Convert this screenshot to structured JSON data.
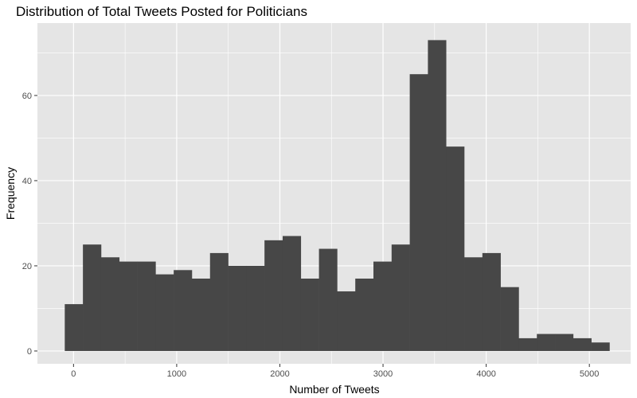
{
  "chart_data": {
    "type": "bar",
    "title": "Distribution of Total Tweets Posted for Politicians",
    "xlabel": "Number of Tweets",
    "ylabel": "Frequency",
    "bin_width": 176,
    "bin_start": -85,
    "values": [
      11,
      25,
      22,
      21,
      21,
      18,
      19,
      17,
      23,
      20,
      20,
      26,
      27,
      17,
      24,
      14,
      17,
      21,
      25,
      65,
      73,
      48,
      22,
      23,
      15,
      3,
      4,
      4,
      3,
      2
    ],
    "xlim": [
      -350,
      5400
    ],
    "ylim": [
      -3,
      77
    ],
    "xticks": [
      0,
      1000,
      2000,
      3000,
      4000,
      5000
    ],
    "yticks": [
      0,
      20,
      40,
      60
    ],
    "grid": true,
    "colors": {
      "panel_background": "#e5e5e5",
      "grid": "#ffffff",
      "bar_fill": "#474747"
    }
  }
}
